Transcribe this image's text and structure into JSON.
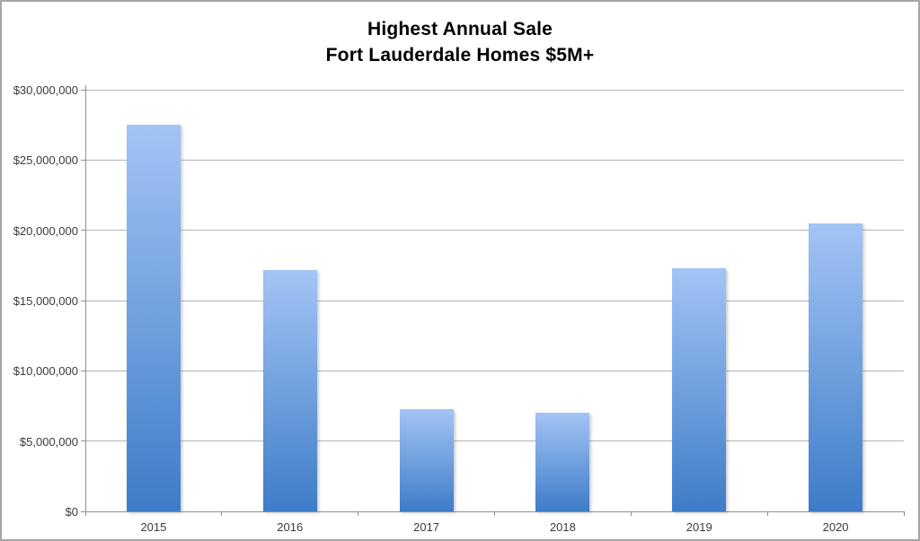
{
  "window": {
    "background": "#ffffff",
    "border_color": "#a6a6a6"
  },
  "chart_data": {
    "type": "bar",
    "title_line1": "Highest Annual Sale",
    "title_line2": "Fort Lauderdale Homes $5M+",
    "categories": [
      "2015",
      "2016",
      "2017",
      "2018",
      "2019",
      "2020"
    ],
    "values": [
      27500000,
      17200000,
      7300000,
      7000000,
      17300000,
      20500000
    ],
    "xlabel": "",
    "ylabel": "",
    "ylim": [
      0,
      30000000
    ],
    "ytick_step": 5000000,
    "ytick_labels": [
      "$0",
      "$5,000,000",
      "$10,000,000",
      "$15,000,000",
      "$20,000,000",
      "$25,000,000",
      "$30,000,000"
    ],
    "grid": "horizontal",
    "legend": "none",
    "colors": {
      "bar_gradient_top": "#a3c4f5",
      "bar_gradient_bottom": "#3e7cc8",
      "gridline": "#b3b3b3",
      "axis": "#8e8e8e",
      "tick_label": "#3a3a3a",
      "title": "#000000"
    }
  }
}
